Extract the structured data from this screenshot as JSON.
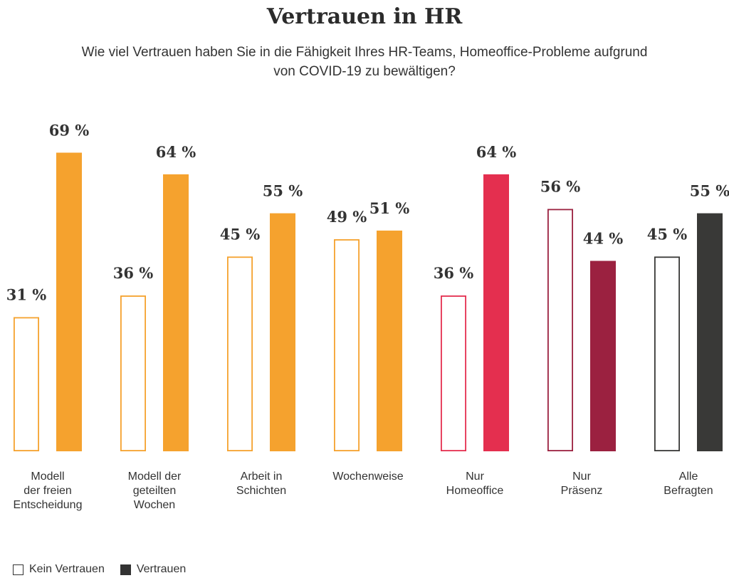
{
  "chart_data": {
    "type": "bar",
    "title": "Vertrauen in HR",
    "subtitle": "Wie viel Vertrauen haben Sie in die Fähigkeit Ihres HR-Teams, Homeoffice-Probleme aufgrund von COVID-19 zu bewältigen?",
    "categories": [
      [
        "Modell",
        "der freien",
        "Entscheidung"
      ],
      [
        "Modell der",
        "geteilten",
        "Wochen"
      ],
      [
        "Arbeit in",
        "Schichten"
      ],
      [
        "Wochenweise"
      ],
      [
        "Nur",
        "Homeoffice"
      ],
      [
        "Nur",
        "Präsenz"
      ],
      [
        "Alle",
        "Befragten"
      ]
    ],
    "series": [
      {
        "name": "Kein Vertrauen",
        "values": [
          31,
          36,
          45,
          49,
          36,
          56,
          45
        ]
      },
      {
        "name": "Vertrauen",
        "values": [
          69,
          64,
          55,
          51,
          64,
          44,
          55
        ]
      }
    ],
    "value_labels": {
      "kein": [
        "31 %",
        "36 %",
        "45 %",
        "49 %",
        "36 %",
        "56 %",
        "45 %"
      ],
      "vertrauen": [
        "69 %",
        "64 %",
        "55 %",
        "51 %",
        "64 %",
        "44 %",
        "55 %"
      ]
    },
    "colors": [
      "#f5a22e",
      "#f5a22e",
      "#f5a22e",
      "#f5a22e",
      "#e42f4f",
      "#9b2140",
      "#393937"
    ],
    "ylim": [
      0,
      100
    ],
    "xlabel": "",
    "ylabel": "",
    "grid": false,
    "legend": "bottom-left"
  },
  "legend": {
    "kein_label": "Kein Vertrauen",
    "vertrauen_label": "Vertrauen"
  }
}
